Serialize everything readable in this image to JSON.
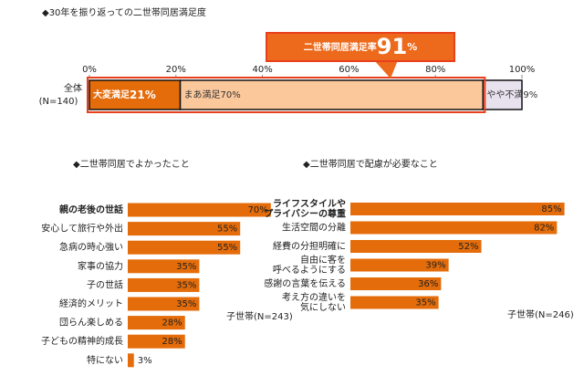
{
  "chart_data": [
    {
      "type": "stacked-hbar",
      "title": "◆30年を振り返っての二世帯同居満足度",
      "categories": [
        "全体"
      ],
      "category_note": "(N=140)",
      "series": [
        {
          "name": "大変満足",
          "color": "#e46c0a",
          "text_color": "#ffffff",
          "values": [
            21
          ],
          "value_labels": [
            "21%"
          ]
        },
        {
          "name": "まあ満足",
          "color": "#fbc89c",
          "text_color": "#333333",
          "values": [
            70
          ],
          "value_labels": [
            "70%"
          ]
        },
        {
          "name": "やや不満",
          "color": "#e8e2ee",
          "text_color": "#333333",
          "values": [
            9
          ],
          "value_labels": [
            "9%"
          ]
        }
      ],
      "xlim": [
        0,
        100
      ],
      "xticks": [
        {
          "value": 0,
          "label": "0%"
        },
        {
          "value": 20,
          "label": "20%"
        },
        {
          "value": 40,
          "label": "40%"
        },
        {
          "value": 60,
          "label": "60%"
        },
        {
          "value": 80,
          "label": "80%"
        },
        {
          "value": 100,
          "label": "100%"
        }
      ],
      "annotation": {
        "text": "二世帯同居満足率",
        "value": 91,
        "unit": "%"
      }
    },
    {
      "type": "hbar",
      "title": "◆二世帯同居でよかったこと",
      "categories": [
        "親の老後の世話",
        "安心して旅行や外出",
        "急病の時心強い",
        "家事の協力",
        "子の世話",
        "経済的メリット",
        "団らん楽しめる",
        "子どもの精神的成長",
        "特にない"
      ],
      "values": [
        70,
        55,
        55,
        35,
        35,
        35,
        28,
        28,
        3
      ],
      "value_labels": [
        "70%",
        "55%",
        "55%",
        "35%",
        "35%",
        "35%",
        "28%",
        "28%",
        "3%"
      ],
      "color": "#e46c0a",
      "label_colors": [
        "#c00000",
        "#c0392b",
        "#c0392b",
        "#333333",
        "#333333",
        "#333333",
        "#333333",
        "#333333",
        "#333333"
      ],
      "note": "子世帯(N=243)"
    },
    {
      "type": "hbar",
      "title": "◆二世帯同居で配慮が必要なこと",
      "categories": [
        "ライフスタイルや\nプライバシーの尊重",
        "生活空間の分離",
        "経費の分担明確に",
        "自由に客を\n呼べるようにする",
        "感謝の言葉を伝える",
        "考え方の違いを\n気にしない"
      ],
      "values": [
        85,
        82,
        52,
        39,
        36,
        35
      ],
      "value_labels": [
        "85%",
        "82%",
        "52%",
        "39%",
        "36%",
        "35%"
      ],
      "color": "#e46c0a",
      "label_colors": [
        "#c00000",
        "#c0392b",
        "#333333",
        "#333333",
        "#333333",
        "#333333"
      ],
      "note": "子世帯(N=246)"
    }
  ]
}
